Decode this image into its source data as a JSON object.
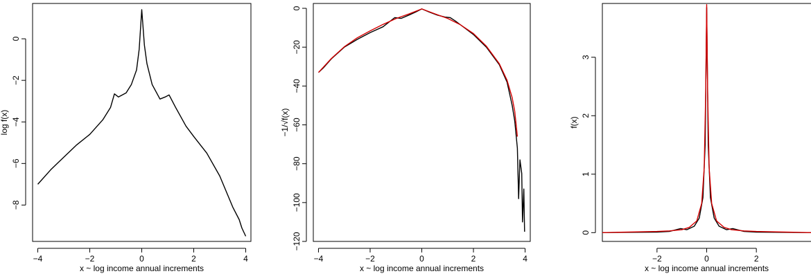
{
  "chart_data": [
    {
      "type": "line",
      "title": "",
      "xlabel": "x ~ log income annual increments",
      "ylabel": "log f(x)",
      "xlim": [
        -4.2,
        4.2
      ],
      "ylim": [
        -9.75,
        1.7
      ],
      "xticks": [
        -4,
        -2,
        0,
        2,
        4
      ],
      "yticks": [
        0,
        -2,
        -4,
        -6,
        -8
      ],
      "xtick_labels": [
        "−4",
        "−2",
        "0",
        "2",
        "4"
      ],
      "ytick_labels": [
        "0",
        "−2",
        "−4",
        "−6",
        "−8"
      ],
      "grid": false,
      "series": [
        {
          "color": "#000000",
          "points": [
            [
              -4.0,
              -7.0
            ],
            [
              -3.5,
              -6.3
            ],
            [
              -3.0,
              -5.7
            ],
            [
              -2.5,
              -5.1
            ],
            [
              -2.0,
              -4.6
            ],
            [
              -1.5,
              -3.9
            ],
            [
              -1.2,
              -3.3
            ],
            [
              -1.05,
              -2.65
            ],
            [
              -0.9,
              -2.8
            ],
            [
              -0.6,
              -2.6
            ],
            [
              -0.4,
              -2.2
            ],
            [
              -0.2,
              -1.5
            ],
            [
              -0.1,
              -0.5
            ],
            [
              0.0,
              1.4
            ],
            [
              0.1,
              -0.3
            ],
            [
              0.2,
              -1.2
            ],
            [
              0.4,
              -2.2
            ],
            [
              0.7,
              -2.9
            ],
            [
              0.9,
              -2.8
            ],
            [
              1.05,
              -2.7
            ],
            [
              1.3,
              -3.3
            ],
            [
              1.7,
              -4.2
            ],
            [
              2.0,
              -4.7
            ],
            [
              2.5,
              -5.5
            ],
            [
              3.0,
              -6.6
            ],
            [
              3.5,
              -8.1
            ],
            [
              3.75,
              -8.7
            ],
            [
              3.85,
              -9.1
            ],
            [
              4.0,
              -9.5
            ]
          ]
        }
      ]
    },
    {
      "type": "line",
      "title": "",
      "xlabel": "x ~ log income annual increments",
      "ylabel": "−1/√f(x)",
      "xlim": [
        -4.2,
        4.2
      ],
      "ylim": [
        -120,
        2.5
      ],
      "xticks": [
        -4,
        -2,
        0,
        2,
        4
      ],
      "yticks": [
        0,
        -20,
        -40,
        -60,
        -80,
        -100,
        -120
      ],
      "xtick_labels": [
        "−4",
        "−2",
        "0",
        "2",
        "4"
      ],
      "ytick_labels": [
        "0",
        "−20",
        "−40",
        "−60",
        "−80",
        "−100",
        "−120"
      ],
      "grid": false,
      "series": [
        {
          "color": "#000000",
          "points": [
            [
              -4.0,
              -33.0
            ],
            [
              -3.8,
              -30.5
            ],
            [
              -3.5,
              -26.0
            ],
            [
              -3.0,
              -20.0
            ],
            [
              -2.5,
              -16.0
            ],
            [
              -2.0,
              -12.5
            ],
            [
              -1.5,
              -9.5
            ],
            [
              -1.05,
              -4.8
            ],
            [
              -0.8,
              -5.2
            ],
            [
              -0.5,
              -3.5
            ],
            [
              -0.25,
              -2.0
            ],
            [
              0.0,
              -0.3
            ],
            [
              0.3,
              -2.0
            ],
            [
              0.6,
              -3.5
            ],
            [
              0.9,
              -4.5
            ],
            [
              1.1,
              -4.8
            ],
            [
              1.3,
              -6.5
            ],
            [
              1.7,
              -10.5
            ],
            [
              2.0,
              -13.5
            ],
            [
              2.5,
              -20.0
            ],
            [
              3.0,
              -29.0
            ],
            [
              3.3,
              -38.0
            ],
            [
              3.5,
              -50.0
            ],
            [
              3.6,
              -58.0
            ],
            [
              3.7,
              -72.0
            ],
            [
              3.75,
              -98.0
            ],
            [
              3.8,
              -78.0
            ],
            [
              3.87,
              -85.0
            ],
            [
              3.9,
              -110.0
            ],
            [
              3.95,
              -93.0
            ],
            [
              3.98,
              -115.0
            ]
          ]
        },
        {
          "color": "#d40000",
          "points": [
            [
              -4.0,
              -33.0
            ],
            [
              -3.5,
              -25.8
            ],
            [
              -3.0,
              -19.8
            ],
            [
              -2.5,
              -15.2
            ],
            [
              -2.0,
              -11.6
            ],
            [
              -1.5,
              -8.3
            ],
            [
              -1.0,
              -5.3
            ],
            [
              -0.5,
              -2.9
            ],
            [
              0.0,
              -0.3
            ],
            [
              0.5,
              -2.8
            ],
            [
              1.0,
              -5.2
            ],
            [
              1.5,
              -8.5
            ],
            [
              2.0,
              -13.0
            ],
            [
              2.5,
              -19.5
            ],
            [
              3.0,
              -28.5
            ],
            [
              3.3,
              -37.0
            ],
            [
              3.5,
              -46.0
            ],
            [
              3.6,
              -53.0
            ],
            [
              3.7,
              -66.0
            ]
          ]
        }
      ]
    },
    {
      "type": "line",
      "title": "",
      "xlabel": "x ~ log income annual increments",
      "ylabel": "f(x)",
      "xlim": [
        -4.2,
        4.2
      ],
      "ylim": [
        -0.15,
        3.92
      ],
      "xticks": [
        -2,
        0,
        2
      ],
      "yticks": [
        0,
        1,
        2,
        3
      ],
      "xtick_labels": [
        "−2",
        "0",
        "2"
      ],
      "ytick_labels": [
        "0",
        "1",
        "2",
        "3"
      ],
      "grid": false,
      "series": [
        {
          "color": "#000000",
          "points": [
            [
              -4.2,
              0.0
            ],
            [
              -2.0,
              0.01
            ],
            [
              -1.5,
              0.02
            ],
            [
              -1.05,
              0.07
            ],
            [
              -0.8,
              0.05
            ],
            [
              -0.5,
              0.11
            ],
            [
              -0.3,
              0.25
            ],
            [
              -0.15,
              0.6
            ],
            [
              -0.06,
              1.5
            ],
            [
              0.0,
              3.85
            ],
            [
              0.06,
              1.5
            ],
            [
              0.15,
              0.6
            ],
            [
              0.3,
              0.25
            ],
            [
              0.5,
              0.11
            ],
            [
              0.8,
              0.05
            ],
            [
              1.05,
              0.07
            ],
            [
              1.5,
              0.02
            ],
            [
              2.0,
              0.01
            ],
            [
              4.2,
              0.0
            ]
          ]
        },
        {
          "color": "#d40000",
          "points": [
            [
              -4.2,
              0.0
            ],
            [
              -2.0,
              0.02
            ],
            [
              -1.5,
              0.03
            ],
            [
              -1.0,
              0.05
            ],
            [
              -0.7,
              0.09
            ],
            [
              -0.4,
              0.2
            ],
            [
              -0.2,
              0.5
            ],
            [
              -0.1,
              1.1
            ],
            [
              -0.04,
              2.4
            ],
            [
              0.0,
              3.9
            ],
            [
              0.04,
              2.4
            ],
            [
              0.1,
              1.1
            ],
            [
              0.2,
              0.5
            ],
            [
              0.4,
              0.2
            ],
            [
              0.7,
              0.09
            ],
            [
              1.0,
              0.05
            ],
            [
              1.5,
              0.03
            ],
            [
              2.0,
              0.02
            ],
            [
              4.2,
              0.0
            ]
          ]
        }
      ]
    }
  ]
}
